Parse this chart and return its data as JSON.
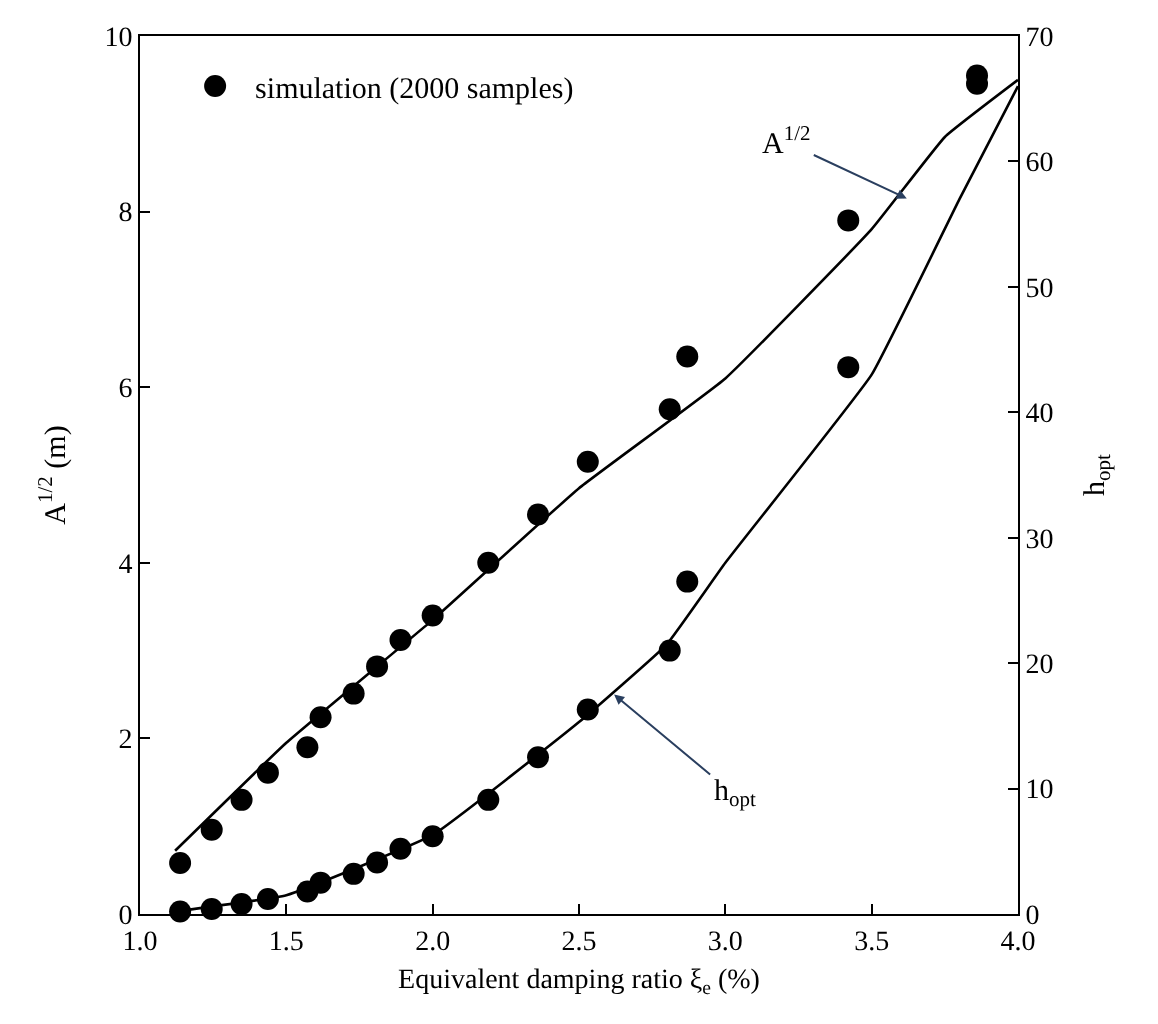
{
  "chart_data": {
    "type": "line",
    "xlabel": "Equivalent damping ratio ξ$_{e}$ (%)",
    "ylabel": "A$^{1/2}$ (m)",
    "y2label": "h$_{opt}$",
    "xlim": [
      1.0,
      4.0
    ],
    "xticks": [
      {
        "value": 1.0,
        "label": "1.0"
      },
      {
        "value": 1.5,
        "label": "1.5"
      },
      {
        "value": 2.0,
        "label": "2.0"
      },
      {
        "value": 2.5,
        "label": "2.5"
      },
      {
        "value": 3.0,
        "label": "3.0"
      },
      {
        "value": 3.5,
        "label": "3.5"
      },
      {
        "value": 4.0,
        "label": "4.0"
      }
    ],
    "ylim": [
      0,
      10
    ],
    "yticks": [
      0,
      2,
      4,
      6,
      8,
      10
    ],
    "y2lim": [
      0,
      70
    ],
    "y2ticks": [
      0,
      10,
      20,
      30,
      40,
      50,
      60,
      70
    ],
    "grid": false,
    "legend": "top left",
    "annotations": [
      {
        "text": "A$^{1/2}$",
        "x": 3.62,
        "y": 8.15
      },
      {
        "text": "h$_{opt}$",
        "x": 2.62,
        "y": 2.5
      }
    ],
    "series": [
      {
        "name": "simulation (2000 samples)",
        "type": "scatter",
        "marker": "circle",
        "color": "#000000",
        "axis": "y",
        "x": [
          1.137,
          1.245,
          1.347,
          1.437,
          1.572,
          1.617,
          1.73,
          1.81,
          1.89,
          2.0,
          2.19,
          2.36,
          2.53,
          2.81,
          2.87,
          3.42,
          3.86
        ],
        "values": [
          0.58,
          0.96,
          1.3,
          1.61,
          1.9,
          2.24,
          2.51,
          2.82,
          3.12,
          3.4,
          4.0,
          4.55,
          5.15,
          5.75,
          6.35,
          7.9,
          9.55
        ]
      },
      {
        "marker": "none",
        "color": "#000000",
        "axis": "y",
        "line_style": "solid",
        "x": [
          1.12,
          1.5,
          2.0,
          2.5,
          3.0,
          3.5,
          3.75,
          4.0
        ],
        "values": [
          0.72,
          1.95,
          3.35,
          4.85,
          6.1,
          7.8,
          8.85,
          9.5
        ]
      },
      {
        "type": "scatter",
        "marker": "circle",
        "color": "#000000",
        "axis": "y2",
        "x": [
          1.137,
          1.245,
          1.347,
          1.437,
          1.572,
          1.617,
          1.73,
          1.81,
          1.89,
          2.0,
          2.19,
          2.36,
          2.53,
          2.81,
          2.87,
          3.42,
          3.86
        ],
        "values": [
          0.2,
          0.4,
          0.8,
          1.2,
          1.8,
          2.5,
          3.2,
          4.1,
          5.2,
          6.2,
          9.1,
          12.5,
          16.3,
          21.0,
          26.5,
          43.6,
          66.2
        ]
      },
      {
        "marker": "none",
        "color": "#000000",
        "axis": "y2",
        "line_style": "solid",
        "x": [
          1.12,
          1.5,
          2.0,
          2.5,
          2.8,
          3.0,
          3.5,
          3.8,
          4.0
        ],
        "values": [
          0.2,
          1.5,
          6.3,
          15.3,
          21.5,
          28.0,
          43.0,
          57.0,
          66.0
        ]
      }
    ]
  }
}
